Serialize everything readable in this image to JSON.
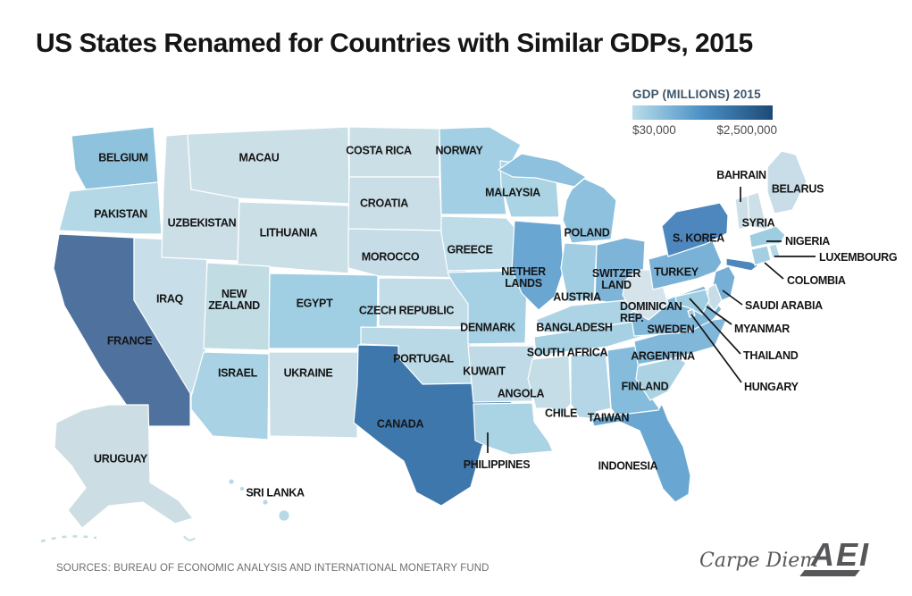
{
  "title": "US States Renamed for Countries with Similar GDPs, 2015",
  "legend": {
    "title": "GDP (MILLIONS) 2015",
    "min_label": "$30,000",
    "max_label": "$2,500,000",
    "gradient_start": "#b9ddec",
    "gradient_mid": "#4a90c4",
    "gradient_end": "#1c4a77"
  },
  "footer": {
    "sources": "SOURCES: BUREAU OF ECONOMIC ANALYSIS AND INTERNATIONAL MONETARY FUND",
    "brand_script": "Carpe Diem",
    "brand_logo": "AEI"
  },
  "map": {
    "border_color": "#ffffff",
    "label_color": "#151515",
    "states": [
      {
        "id": "WA",
        "country": "BELGIUM",
        "color": "#8fc3dd"
      },
      {
        "id": "OR",
        "country": "PAKISTAN",
        "color": "#b5d8e7"
      },
      {
        "id": "CA",
        "country": "FRANCE",
        "color": "#4e719e"
      },
      {
        "id": "NV",
        "country": "IRAQ",
        "color": "#c8dee8"
      },
      {
        "id": "ID",
        "country": "UZBEKISTAN",
        "color": "#ccdfe7"
      },
      {
        "id": "MT",
        "country": "MACAU",
        "color": "#cbdfe7"
      },
      {
        "id": "WY",
        "country": "LITHUANIA",
        "color": "#cbdfe7"
      },
      {
        "id": "UT",
        "country": "NEW ZEALAND",
        "color": "#c2dce4"
      },
      {
        "id": "AZ",
        "country": "ISRAEL",
        "color": "#a9d3e5"
      },
      {
        "id": "CO",
        "country": "EGYPT",
        "color": "#a0cee3"
      },
      {
        "id": "NM",
        "country": "UKRAINE",
        "color": "#cadfe8"
      },
      {
        "id": "ND",
        "country": "COSTA RICA",
        "color": "#cbdfe7"
      },
      {
        "id": "SD",
        "country": "CROATIA",
        "color": "#cadee7"
      },
      {
        "id": "NE",
        "country": "MOROCCO",
        "color": "#c6dde7"
      },
      {
        "id": "KS",
        "country": "CZECH REPUBLIC",
        "color": "#c2dce8"
      },
      {
        "id": "OK",
        "country": "PORTUGAL",
        "color": "#bad9e7"
      },
      {
        "id": "TX",
        "country": "CANADA",
        "color": "#3e77ac"
      },
      {
        "id": "MN",
        "country": "NORWAY",
        "color": "#a2cfe3"
      },
      {
        "id": "IA",
        "country": "GREECE",
        "color": "#bedbe8"
      },
      {
        "id": "MO",
        "country": "DENMARK",
        "color": "#a6d0e3"
      },
      {
        "id": "AR",
        "country": "KUWAIT",
        "color": "#c0dbe7"
      },
      {
        "id": "LA",
        "country": "PHILIPPINES",
        "color": "#aad3e4"
      },
      {
        "id": "WI",
        "country": "MALAYSIA",
        "color": "#aad3e4"
      },
      {
        "id": "IL",
        "country": "NETHERLANDS",
        "color": "#69a6d1"
      },
      {
        "id": "MI",
        "country": "POLAND",
        "color": "#8dc1dd"
      },
      {
        "id": "IN",
        "country": "AUSTRIA",
        "color": "#a0cde2"
      },
      {
        "id": "OH",
        "country": "SWITZERLAND",
        "color": "#7eb4d8"
      },
      {
        "id": "KY",
        "country": "BANGLADESH",
        "color": "#add4e5"
      },
      {
        "id": "TN",
        "country": "SOUTH AFRICA",
        "color": "#a6d1e3"
      },
      {
        "id": "MS",
        "country": "ANGOLA",
        "color": "#c5dde6"
      },
      {
        "id": "AL",
        "country": "CHILE",
        "color": "#b4d6e6"
      },
      {
        "id": "GA",
        "country": "TAIWAN",
        "color": "#86bcdb"
      },
      {
        "id": "FL",
        "country": "INDONESIA",
        "color": "#69a7d2"
      },
      {
        "id": "SC",
        "country": "FINLAND",
        "color": "#abd3e4"
      },
      {
        "id": "NC",
        "country": "ARGENTINA",
        "color": "#81b7d9"
      },
      {
        "id": "VA",
        "country": "SWEDEN",
        "color": "#81b7d9"
      },
      {
        "id": "WV",
        "country": "DOMINICAN REP.",
        "color": "#d5e3ea"
      },
      {
        "id": "PA",
        "country": "TURKEY",
        "color": "#7ab2d7"
      },
      {
        "id": "NY",
        "country": "S. KOREA",
        "color": "#4d87bd"
      },
      {
        "id": "ME",
        "country": "BELARUS",
        "color": "#c8dde7"
      },
      {
        "id": "VT",
        "country": "BAHRAIN",
        "color": "#cde0e8"
      },
      {
        "id": "NH",
        "country": "SYRIA",
        "color": "#cde0e8"
      },
      {
        "id": "MA",
        "country": "NIGERIA",
        "color": "#9ecce1"
      },
      {
        "id": "RI",
        "country": "LUXEMBOURG",
        "color": "#b3d7e6"
      },
      {
        "id": "CT",
        "country": "COLOMBIA",
        "color": "#a4cfe2"
      },
      {
        "id": "NJ",
        "country": "SAUDI ARABIA",
        "color": "#76aed5"
      },
      {
        "id": "DE",
        "country": "MYANMAR",
        "color": "#c6dde8"
      },
      {
        "id": "MD",
        "country": "THAILAND",
        "color": "#9ecde2"
      },
      {
        "id": "DC",
        "country": "HUNGARY",
        "color": "#9ecde2"
      },
      {
        "id": "AK",
        "country": "URUGUAY",
        "color": "#ccdde4"
      },
      {
        "id": "HI",
        "country": "SRI LANKA",
        "color": "#b7d8e6"
      }
    ]
  }
}
